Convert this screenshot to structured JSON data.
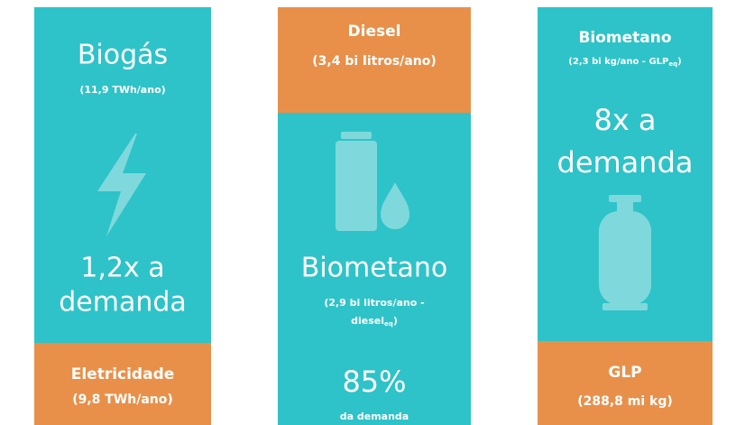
{
  "panels": [
    {
      "title": "Biogás",
      "subtitle": "(11,9 TWh/ano)",
      "result_line1": "1,2x a",
      "result_line2": "demanda",
      "footer_title": "Eletricidade",
      "footer_subtitle": "(9,8 TWh/ano)"
    },
    {
      "header_title": "Diesel",
      "header_subtitle": "(3,4 bi litros/ano)",
      "title": "Biometano",
      "subtitle_line1": "(2,9 bi litros/ano -",
      "subtitle_line2_main": "diesel",
      "subtitle_line2_sub": "eq",
      "subtitle_line2_end": ")",
      "result": "85%",
      "result_caption": "da demanda"
    },
    {
      "title": "Biometano",
      "subtitle_main": "(2,3 bi kg/ano - GLP",
      "subtitle_sub": "eq",
      "subtitle_end": ")",
      "result_line1": "8x a",
      "result_line2": "demanda",
      "footer_title": "GLP",
      "footer_subtitle": "(288,8 mi kg)"
    }
  ]
}
